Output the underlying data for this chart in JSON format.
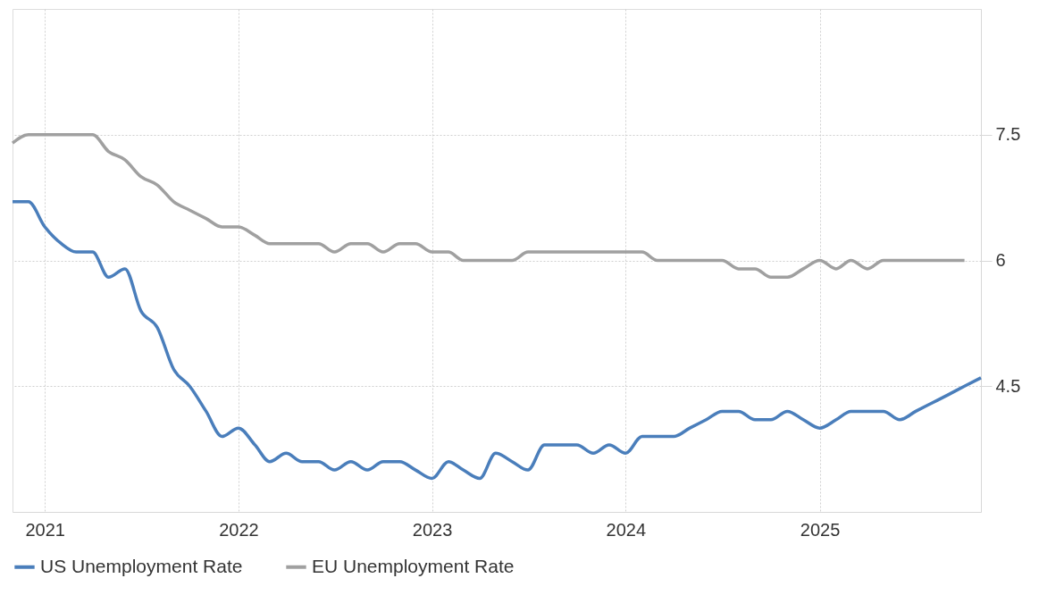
{
  "chart_data": {
    "type": "line",
    "x": [
      "2020-11",
      "2020-12",
      "2021-01",
      "2021-02",
      "2021-03",
      "2021-04",
      "2021-05",
      "2021-06",
      "2021-07",
      "2021-08",
      "2021-09",
      "2021-10",
      "2021-11",
      "2021-12",
      "2022-01",
      "2022-02",
      "2022-03",
      "2022-04",
      "2022-05",
      "2022-06",
      "2022-07",
      "2022-08",
      "2022-09",
      "2022-10",
      "2022-11",
      "2022-12",
      "2023-01",
      "2023-02",
      "2023-03",
      "2023-04",
      "2023-05",
      "2023-06",
      "2023-07",
      "2023-08",
      "2023-09",
      "2023-10",
      "2023-11",
      "2023-12",
      "2024-01",
      "2024-02",
      "2024-03",
      "2024-04",
      "2024-05",
      "2024-06",
      "2024-07",
      "2024-08",
      "2024-09",
      "2024-10",
      "2024-11",
      "2024-12",
      "2025-01",
      "2025-02",
      "2025-03",
      "2025-04",
      "2025-05",
      "2025-06",
      "2025-07",
      "2025-08",
      "2025-09",
      "2025-10",
      "2025-11"
    ],
    "series": [
      {
        "name": "US Unemployment Rate",
        "color": "#4a7ebb",
        "values": [
          6.7,
          6.7,
          6.4,
          6.2,
          6.1,
          6.1,
          5.8,
          5.9,
          5.4,
          5.2,
          4.7,
          4.5,
          4.2,
          3.9,
          4.0,
          3.8,
          3.6,
          3.7,
          3.6,
          3.6,
          3.5,
          3.6,
          3.5,
          3.6,
          3.6,
          3.5,
          3.4,
          3.6,
          3.5,
          3.4,
          3.7,
          3.6,
          3.5,
          3.8,
          3.8,
          3.8,
          3.7,
          3.8,
          3.7,
          3.9,
          3.9,
          3.9,
          4.0,
          4.1,
          4.2,
          4.2,
          4.1,
          4.1,
          4.2,
          4.1,
          4.0,
          4.1,
          4.2,
          4.2,
          4.2,
          4.1,
          4.2,
          4.3,
          4.4,
          4.5,
          4.6
        ]
      },
      {
        "name": "EU Unemployment Rate",
        "color": "#a0a0a0",
        "values": [
          7.4,
          7.5,
          7.5,
          7.5,
          7.5,
          7.5,
          7.3,
          7.2,
          7.0,
          6.9,
          6.7,
          6.6,
          6.5,
          6.4,
          6.4,
          6.3,
          6.2,
          6.2,
          6.2,
          6.2,
          6.1,
          6.2,
          6.2,
          6.1,
          6.2,
          6.2,
          6.1,
          6.1,
          6.0,
          6.0,
          6.0,
          6.0,
          6.1,
          6.1,
          6.1,
          6.1,
          6.1,
          6.1,
          6.1,
          6.1,
          6.0,
          6.0,
          6.0,
          6.0,
          6.0,
          5.9,
          5.9,
          5.8,
          5.8,
          5.9,
          6.0,
          5.9,
          6.0,
          5.9,
          6.0,
          6.0,
          6.0,
          6.0,
          6.0,
          6.0,
          null
        ]
      }
    ],
    "xlim": [
      "2020-11",
      "2025-11"
    ],
    "xticks": [
      {
        "value": "2021-01",
        "label": "2021"
      },
      {
        "value": "2022-01",
        "label": "2022"
      },
      {
        "value": "2023-01",
        "label": "2023"
      },
      {
        "value": "2024-01",
        "label": "2024"
      },
      {
        "value": "2025-01",
        "label": "2025"
      }
    ],
    "ylim": [
      3,
      9
    ],
    "yticks": [
      4.5,
      6,
      7.5
    ],
    "grid": true,
    "legend": "bottom",
    "marker": "none",
    "line_style": "solid"
  }
}
